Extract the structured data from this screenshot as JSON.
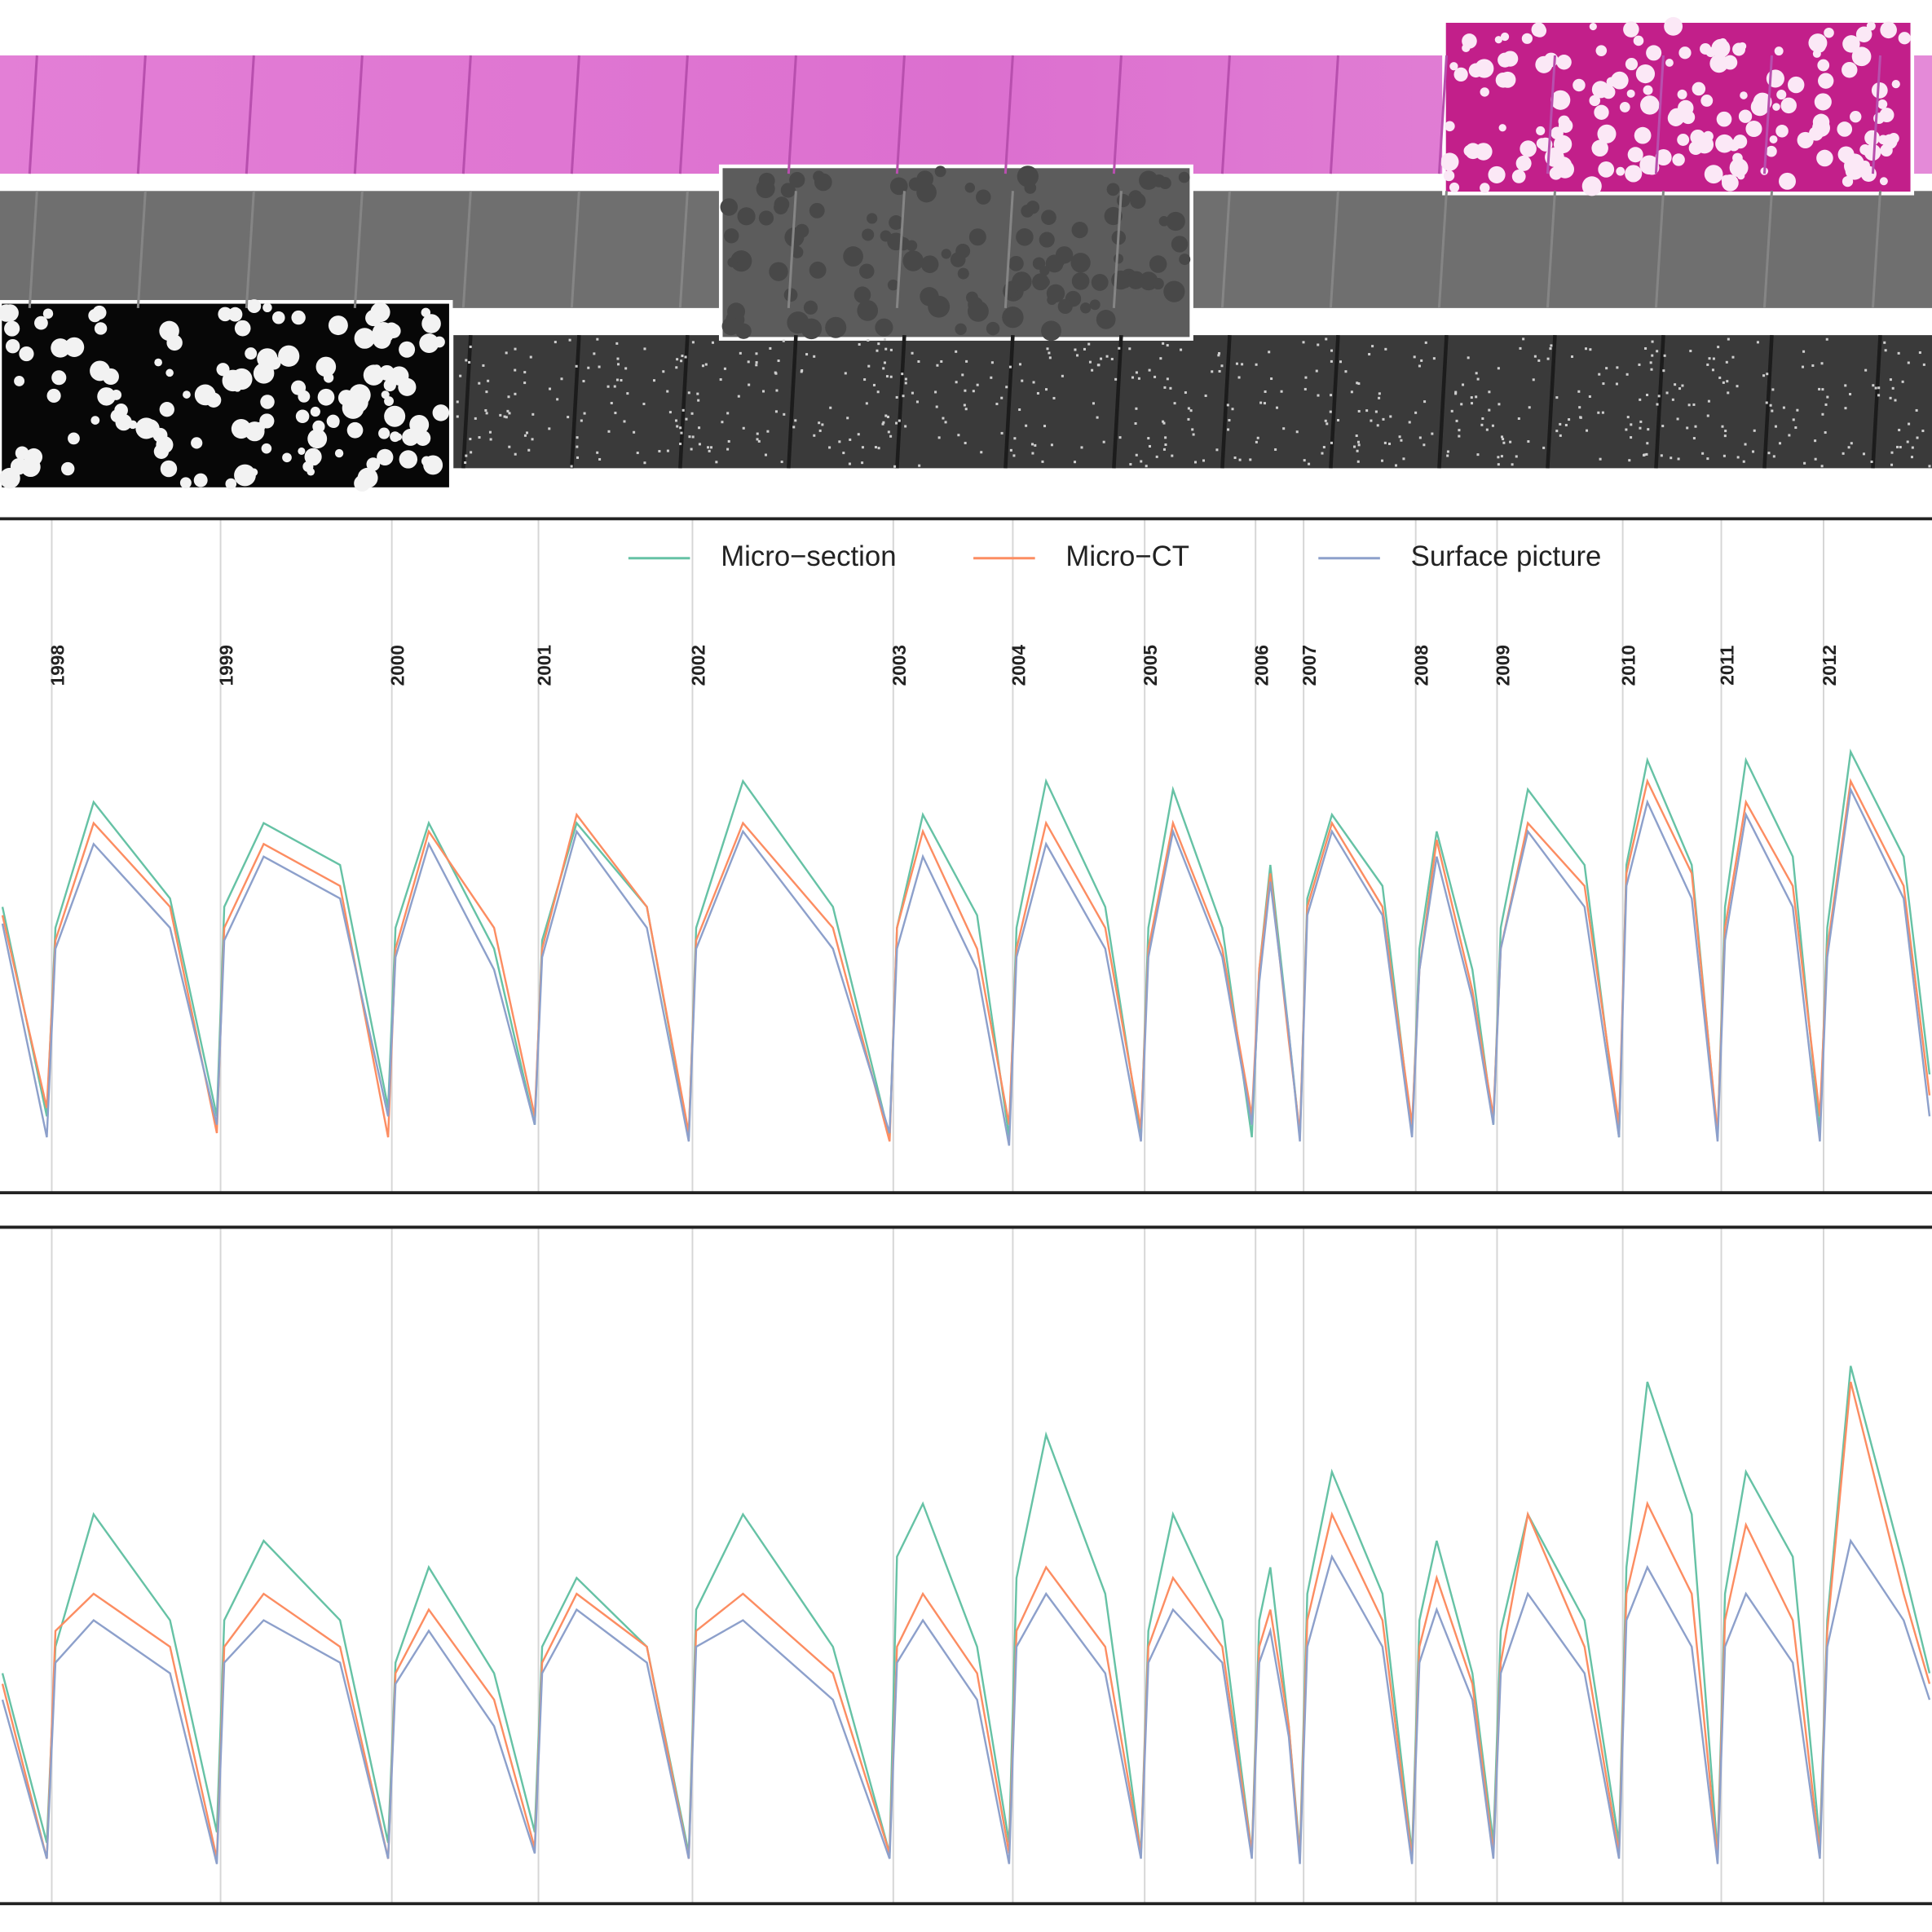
{
  "chart_data": [
    {
      "type": "line",
      "tick_labels": true,
      "legend": "top",
      "grid": true,
      "xlim": [
        0,
        1568
      ],
      "ylim": [
        0,
        1
      ],
      "xticks": [
        {
          "value": 42,
          "label": "1998"
        },
        {
          "value": 179,
          "label": "1999"
        },
        {
          "value": 318,
          "label": "2000"
        },
        {
          "value": 437,
          "label": "2001"
        },
        {
          "value": 562,
          "label": "2002"
        },
        {
          "value": 725,
          "label": "2003"
        },
        {
          "value": 822,
          "label": "2004"
        },
        {
          "value": 929,
          "label": "2005"
        },
        {
          "value": 1019,
          "label": "2006"
        },
        {
          "value": 1058,
          "label": "2007"
        },
        {
          "value": 1149,
          "label": "2008"
        },
        {
          "value": 1215,
          "label": "2009"
        },
        {
          "value": 1317,
          "label": "2010"
        },
        {
          "value": 1397,
          "label": "2011"
        },
        {
          "value": 1480,
          "label": "2012"
        }
      ],
      "x": [
        2,
        38,
        45,
        76,
        138,
        176,
        182,
        214,
        276,
        315,
        321,
        348,
        401,
        434,
        440,
        468,
        525,
        559,
        565,
        603,
        676,
        722,
        728,
        749,
        793,
        819,
        825,
        849,
        897,
        926,
        932,
        952,
        992,
        1016,
        1022,
        1031,
        1046,
        1055,
        1061,
        1081,
        1122,
        1146,
        1152,
        1166,
        1195,
        1212,
        1218,
        1240,
        1286,
        1314,
        1320,
        1337,
        1373,
        1394,
        1400,
        1417,
        1455,
        1477,
        1483,
        1502,
        1545,
        1566
      ],
      "series": [
        {
          "name": "Micro−section",
          "color": "#66c2a5",
          "values": [
            0.6,
            0.1,
            0.55,
            0.85,
            0.62,
            0.1,
            0.6,
            0.8,
            0.7,
            0.12,
            0.55,
            0.8,
            0.5,
            0.08,
            0.52,
            0.8,
            0.6,
            0.05,
            0.55,
            0.9,
            0.6,
            0.05,
            0.55,
            0.82,
            0.58,
            0.05,
            0.55,
            0.9,
            0.6,
            0.05,
            0.55,
            0.88,
            0.55,
            0.05,
            0.45,
            0.7,
            0.3,
            0.05,
            0.62,
            0.82,
            0.65,
            0.06,
            0.5,
            0.78,
            0.45,
            0.08,
            0.55,
            0.88,
            0.7,
            0.05,
            0.7,
            0.95,
            0.7,
            0.05,
            0.6,
            0.95,
            0.72,
            0.06,
            0.55,
            0.97,
            0.72,
            0.2
          ]
        },
        {
          "name": "Micro−CT",
          "color": "#fc8d62",
          "values": [
            0.58,
            0.12,
            0.52,
            0.8,
            0.6,
            0.06,
            0.55,
            0.75,
            0.65,
            0.05,
            0.5,
            0.78,
            0.55,
            0.1,
            0.5,
            0.82,
            0.6,
            0.06,
            0.52,
            0.8,
            0.55,
            0.04,
            0.55,
            0.78,
            0.5,
            0.08,
            0.5,
            0.8,
            0.55,
            0.07,
            0.5,
            0.8,
            0.5,
            0.1,
            0.45,
            0.68,
            0.28,
            0.06,
            0.6,
            0.8,
            0.6,
            0.08,
            0.45,
            0.76,
            0.4,
            0.1,
            0.5,
            0.8,
            0.65,
            0.08,
            0.68,
            0.9,
            0.68,
            0.06,
            0.55,
            0.85,
            0.65,
            0.1,
            0.5,
            0.9,
            0.65,
            0.15
          ]
        },
        {
          "name": "Surface picture",
          "color": "#8da0cb",
          "values": [
            0.56,
            0.05,
            0.5,
            0.75,
            0.55,
            0.08,
            0.52,
            0.72,
            0.62,
            0.1,
            0.48,
            0.75,
            0.45,
            0.08,
            0.48,
            0.78,
            0.55,
            0.04,
            0.5,
            0.78,
            0.5,
            0.06,
            0.5,
            0.72,
            0.45,
            0.03,
            0.48,
            0.75,
            0.5,
            0.04,
            0.48,
            0.78,
            0.48,
            0.08,
            0.42,
            0.66,
            0.3,
            0.04,
            0.58,
            0.78,
            0.58,
            0.05,
            0.45,
            0.72,
            0.38,
            0.08,
            0.5,
            0.78,
            0.6,
            0.05,
            0.65,
            0.85,
            0.62,
            0.04,
            0.52,
            0.82,
            0.6,
            0.04,
            0.48,
            0.88,
            0.62,
            0.1
          ]
        }
      ]
    },
    {
      "type": "line",
      "tick_labels": false,
      "legend": "none",
      "grid": true,
      "xlim": [
        0,
        1568
      ],
      "ylim": [
        0,
        1
      ],
      "xticks": [
        42,
        179,
        318,
        437,
        562,
        725,
        822,
        929,
        1019,
        1058,
        1149,
        1215,
        1317,
        1397,
        1480
      ],
      "x": [
        2,
        38,
        45,
        76,
        138,
        176,
        182,
        214,
        276,
        315,
        321,
        348,
        401,
        434,
        440,
        468,
        525,
        559,
        565,
        603,
        676,
        722,
        728,
        749,
        793,
        819,
        825,
        849,
        897,
        926,
        932,
        952,
        992,
        1016,
        1022,
        1031,
        1046,
        1055,
        1061,
        1081,
        1122,
        1146,
        1152,
        1166,
        1195,
        1212,
        1218,
        1240,
        1286,
        1314,
        1320,
        1337,
        1373,
        1394,
        1400,
        1417,
        1455,
        1477,
        1483,
        1502,
        1545,
        1566
      ],
      "series": [
        {
          "color": "#66c2a5",
          "values": [
            0.4,
            0.08,
            0.45,
            0.7,
            0.5,
            0.1,
            0.5,
            0.65,
            0.5,
            0.08,
            0.42,
            0.6,
            0.4,
            0.1,
            0.45,
            0.58,
            0.45,
            0.06,
            0.52,
            0.7,
            0.45,
            0.06,
            0.62,
            0.72,
            0.45,
            0.08,
            0.58,
            0.85,
            0.55,
            0.06,
            0.48,
            0.7,
            0.5,
            0.06,
            0.5,
            0.6,
            0.3,
            0.06,
            0.55,
            0.78,
            0.55,
            0.06,
            0.5,
            0.65,
            0.4,
            0.08,
            0.48,
            0.7,
            0.5,
            0.08,
            0.6,
            0.95,
            0.7,
            0.06,
            0.55,
            0.78,
            0.62,
            0.08,
            0.5,
            0.98,
            0.6,
            0.4
          ]
        },
        {
          "color": "#fc8d62",
          "values": [
            0.38,
            0.05,
            0.48,
            0.55,
            0.45,
            0.05,
            0.45,
            0.55,
            0.45,
            0.05,
            0.4,
            0.52,
            0.35,
            0.07,
            0.42,
            0.55,
            0.45,
            0.05,
            0.48,
            0.55,
            0.4,
            0.06,
            0.45,
            0.55,
            0.4,
            0.06,
            0.48,
            0.6,
            0.45,
            0.06,
            0.45,
            0.58,
            0.45,
            0.06,
            0.45,
            0.52,
            0.3,
            0.05,
            0.5,
            0.7,
            0.5,
            0.05,
            0.45,
            0.58,
            0.38,
            0.06,
            0.42,
            0.7,
            0.45,
            0.06,
            0.55,
            0.72,
            0.55,
            0.05,
            0.5,
            0.68,
            0.5,
            0.06,
            0.48,
            0.95,
            0.55,
            0.38
          ]
        },
        {
          "color": "#8da0cb",
          "values": [
            0.35,
            0.05,
            0.42,
            0.5,
            0.4,
            0.04,
            0.42,
            0.5,
            0.42,
            0.05,
            0.38,
            0.48,
            0.3,
            0.06,
            0.4,
            0.52,
            0.42,
            0.05,
            0.45,
            0.5,
            0.35,
            0.05,
            0.42,
            0.5,
            0.35,
            0.04,
            0.45,
            0.55,
            0.4,
            0.05,
            0.42,
            0.52,
            0.42,
            0.05,
            0.42,
            0.48,
            0.28,
            0.04,
            0.45,
            0.62,
            0.45,
            0.04,
            0.42,
            0.52,
            0.35,
            0.05,
            0.4,
            0.55,
            0.4,
            0.05,
            0.5,
            0.6,
            0.45,
            0.04,
            0.45,
            0.55,
            0.42,
            0.05,
            0.45,
            0.65,
            0.5,
            0.35
          ]
        }
      ]
    }
  ]
}
